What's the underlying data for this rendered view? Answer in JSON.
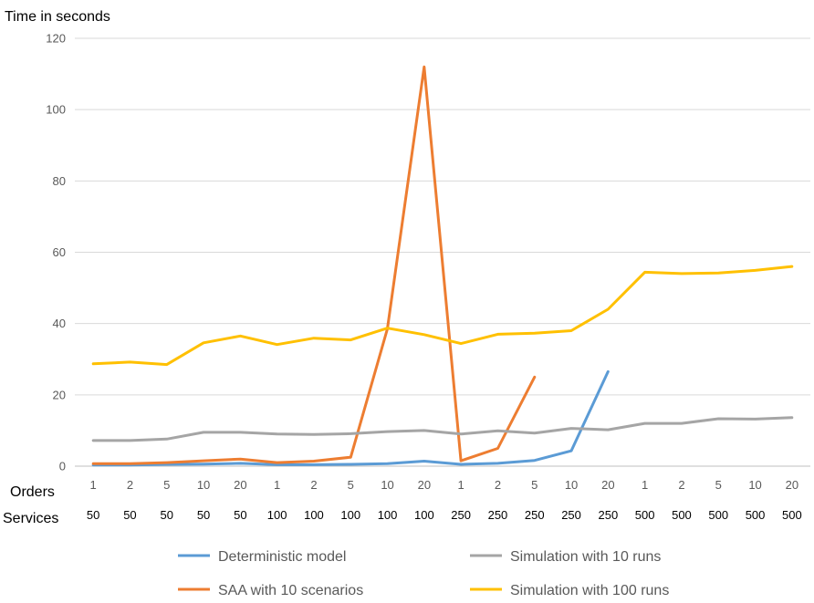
{
  "chart_data": {
    "type": "line",
    "ylabel": "Time in seconds",
    "ylim": [
      0,
      120
    ],
    "yticks": [
      0,
      20,
      40,
      60,
      80,
      100,
      120
    ],
    "grid": true,
    "legend_position": "bottom",
    "x_row_labels": [
      "Orders",
      "Services"
    ],
    "orders": [
      "1",
      "2",
      "5",
      "10",
      "20",
      "1",
      "2",
      "5",
      "10",
      "20",
      "1",
      "2",
      "5",
      "10",
      "20",
      "1",
      "2",
      "5",
      "10",
      "20"
    ],
    "services": [
      "50",
      "50",
      "50",
      "50",
      "50",
      "100",
      "100",
      "100",
      "100",
      "100",
      "250",
      "250",
      "250",
      "250",
      "250",
      "500",
      "500",
      "500",
      "500",
      "500"
    ],
    "series": [
      {
        "name": "Deterministic model",
        "color": "#5b9bd5",
        "values": [
          0.3,
          0.3,
          0.5,
          0.6,
          0.8,
          0.4,
          0.4,
          0.5,
          0.7,
          1.4,
          0.5,
          0.8,
          1.6,
          4.3,
          26.5,
          null,
          null,
          null,
          null,
          null
        ]
      },
      {
        "name": "SAA  with 10 scenarios",
        "color": "#ed7d31",
        "values": [
          0.7,
          0.7,
          1.0,
          1.5,
          2.0,
          1.0,
          1.4,
          2.5,
          38.5,
          112,
          1.5,
          5.0,
          25.0,
          null,
          null,
          null,
          null,
          null,
          null,
          null
        ]
      },
      {
        "name": "Simulation with 10 runs",
        "color": "#a5a5a5",
        "values": [
          7.2,
          7.2,
          7.6,
          9.5,
          9.5,
          9.0,
          8.9,
          9.1,
          9.7,
          10.0,
          9.0,
          9.9,
          9.3,
          10.6,
          10.2,
          12.0,
          12.0,
          13.3,
          13.2,
          13.6
        ]
      },
      {
        "name": "Simulation with 100 runs",
        "color": "#ffc000",
        "values": [
          28.7,
          29.2,
          28.5,
          34.6,
          36.5,
          34.1,
          35.9,
          35.4,
          38.7,
          36.9,
          34.4,
          37.0,
          37.3,
          38.0,
          44.0,
          54.4,
          54.0,
          54.2,
          54.9,
          56.0
        ]
      }
    ]
  }
}
